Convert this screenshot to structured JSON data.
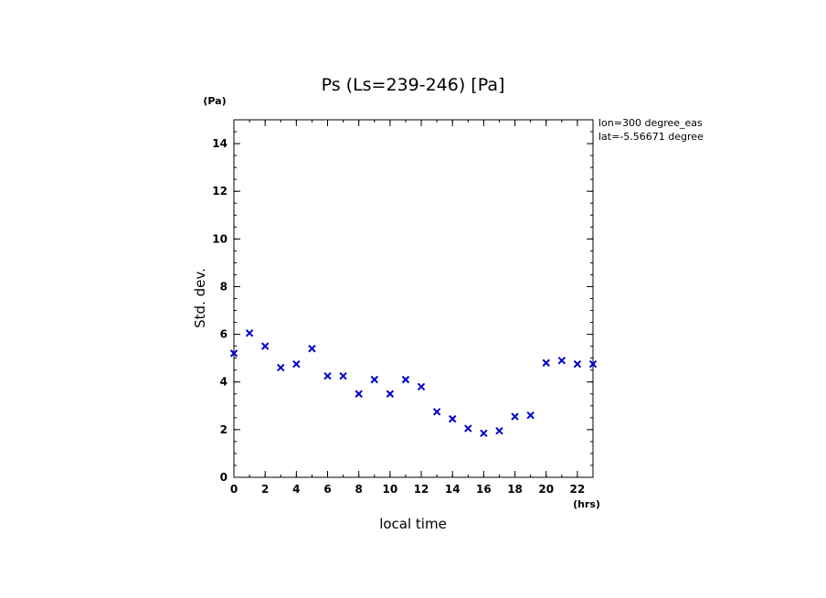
{
  "chart_data": {
    "type": "scatter",
    "title": "Ps (Ls=239-246) [Pa]",
    "xlabel": "local time",
    "ylabel": "Std. dev.",
    "x_unit": "(hrs)",
    "y_unit": "(Pa)",
    "xlim": [
      0,
      23
    ],
    "ylim": [
      0,
      15
    ],
    "x_ticks": [
      0,
      2,
      4,
      6,
      8,
      10,
      12,
      14,
      16,
      18,
      20,
      22
    ],
    "y_ticks": [
      0,
      2,
      4,
      6,
      8,
      10,
      12,
      14
    ],
    "grid": false,
    "marker": "x",
    "marker_color": "#0000cc",
    "annotations": [
      "lon=300 degree_eas",
      "lat=-5.56671 degree"
    ],
    "series": [
      {
        "x": [
          0,
          1,
          2,
          3,
          4,
          5,
          6,
          7,
          8,
          9,
          10,
          11,
          12,
          13,
          14,
          15,
          16,
          17,
          18,
          19,
          20,
          21,
          22,
          23
        ],
        "values": [
          5.2,
          6.05,
          5.5,
          4.6,
          4.75,
          5.4,
          4.25,
          4.25,
          3.5,
          4.1,
          3.5,
          4.1,
          3.8,
          2.75,
          2.45,
          2.05,
          1.85,
          1.95,
          2.55,
          2.6,
          4.8,
          4.9,
          4.75,
          4.75
        ]
      }
    ]
  }
}
